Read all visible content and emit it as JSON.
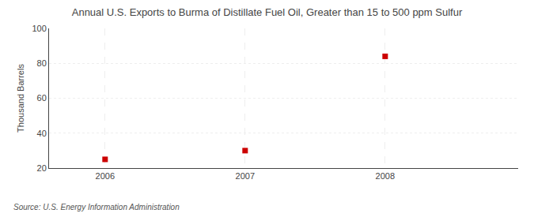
{
  "chart_data": {
    "type": "scatter",
    "title": "Annual U.S. Exports to Burma of Distillate Fuel Oil, Greater than 15 to 500 ppm Sulfur",
    "ylabel": "Thousand Barrels",
    "annotation": "Source: U.S. Energy Information Administration",
    "x": [
      2006,
      2007,
      2008
    ],
    "values": [
      25,
      30,
      84
    ],
    "xlim": [
      2005.6,
      2008.95
    ],
    "ylim": [
      20,
      100
    ],
    "xticks": [
      2006,
      2007,
      2008
    ],
    "yticks": [
      20,
      40,
      60,
      80,
      100
    ],
    "color": "#cc0000",
    "marker": "square",
    "grid": true
  }
}
